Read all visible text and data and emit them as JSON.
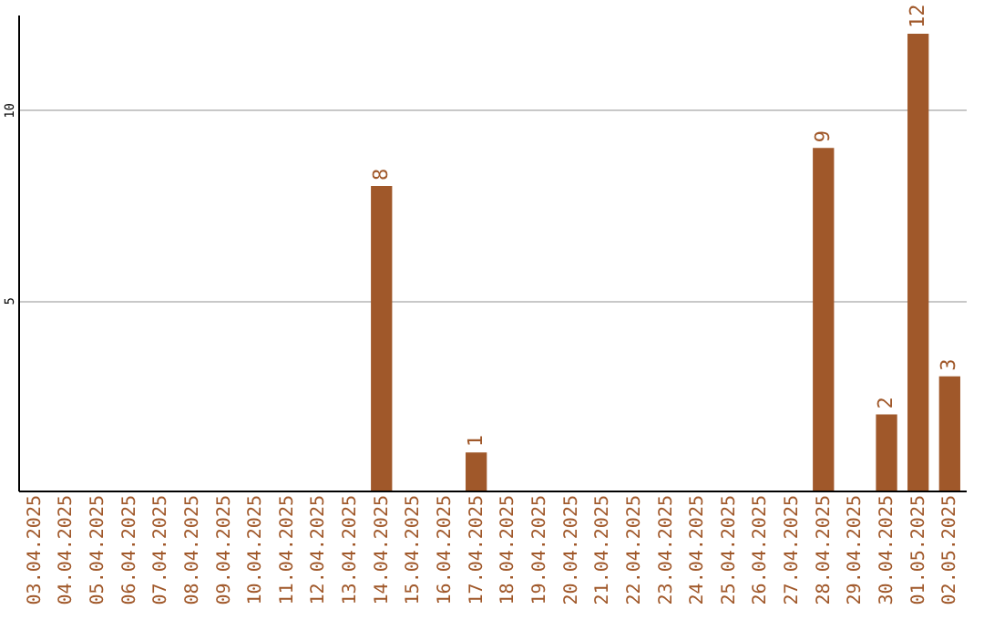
{
  "chart_data": {
    "type": "bar",
    "categories": [
      "03.04.2025",
      "04.04.2025",
      "05.04.2025",
      "06.04.2025",
      "07.04.2025",
      "08.04.2025",
      "09.04.2025",
      "10.04.2025",
      "11.04.2025",
      "12.04.2025",
      "13.04.2025",
      "14.04.2025",
      "15.04.2025",
      "16.04.2025",
      "17.04.2025",
      "18.04.2025",
      "19.04.2025",
      "20.04.2025",
      "21.04.2025",
      "22.04.2025",
      "23.04.2025",
      "24.04.2025",
      "25.04.2025",
      "26.04.2025",
      "27.04.2025",
      "28.04.2025",
      "29.04.2025",
      "30.04.2025",
      "01.05.2025",
      "02.05.2025"
    ],
    "values": [
      0,
      0,
      0,
      0,
      0,
      0,
      0,
      0,
      0,
      0,
      0,
      8,
      0,
      0,
      1,
      0,
      0,
      0,
      0,
      0,
      0,
      0,
      0,
      0,
      0,
      9,
      0,
      2,
      12,
      3
    ],
    "value_labels": [
      null,
      null,
      null,
      null,
      null,
      null,
      null,
      null,
      null,
      null,
      null,
      "8",
      null,
      null,
      "1",
      null,
      null,
      null,
      null,
      null,
      null,
      null,
      null,
      null,
      null,
      "9",
      null,
      "2",
      "12",
      "3"
    ],
    "color": "#a0582a",
    "ylim": [
      0,
      12.5
    ],
    "yticks": [
      5,
      10
    ],
    "grid": "y"
  }
}
